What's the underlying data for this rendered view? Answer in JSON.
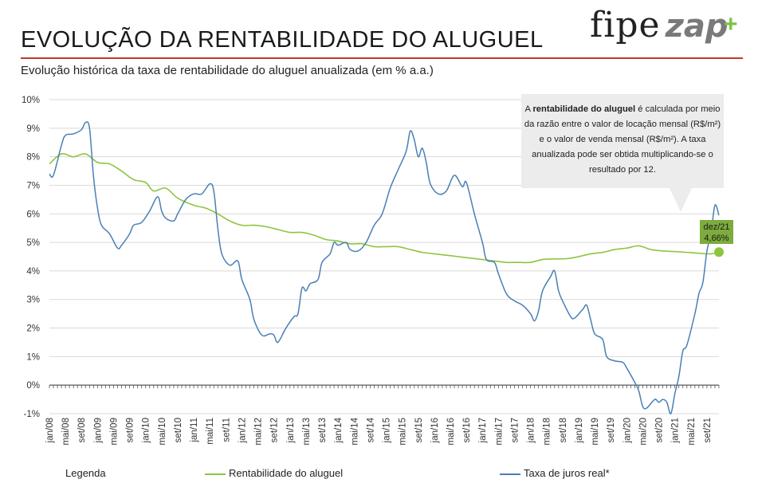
{
  "header": {
    "title": "EVOLUÇÃO DA RENTABILIDADE DO ALUGUEL",
    "subtitle": "Evolução histórica da taxa de rentabilidade do aluguel anualizada (em % a.a.)",
    "logo_main": "fipe",
    "logo_secondary": "zap",
    "logo_plus": "+"
  },
  "note": {
    "prefix": "A ",
    "bold": "rentabilidade do aluguel",
    "rest": " é calculada por meio da razão entre o valor de locação mensal (R$/m²) e o valor de venda mensal (R$/m²).  A taxa anualizada pode ser obtida multiplicando-se  o resultado por 12."
  },
  "callout": {
    "line1": "dez/21",
    "line2": "4,66%"
  },
  "legend": {
    "title": "Legenda",
    "items": [
      {
        "label": "Rentabilidade do aluguel",
        "color": "#8cc63f"
      },
      {
        "label": "Taxa de juros real*",
        "color": "#4a7fb5"
      }
    ]
  },
  "colors": {
    "accent_rule": "#c0392b",
    "rent": "#8cc63f",
    "rate": "#4a7fb5",
    "callout": "#7dab3d",
    "grid": "#d9d9d9"
  },
  "chart_data": {
    "type": "line",
    "x_range": [
      "jan/08",
      "dez/21"
    ],
    "ylim": [
      -1,
      10
    ],
    "y_ticks": [
      "-1%",
      "0%",
      "1%",
      "2%",
      "3%",
      "4%",
      "5%",
      "6%",
      "7%",
      "8%",
      "9%",
      "10%"
    ],
    "x_tick_labels": [
      "jan/08",
      "mai/08",
      "set/08",
      "jan/09",
      "mai/09",
      "set/09",
      "jan/10",
      "mai/10",
      "set/10",
      "jan/11",
      "mai/11",
      "set/11",
      "jan/12",
      "mai/12",
      "set/12",
      "jan/13",
      "mai/13",
      "set/13",
      "jan/14",
      "mai/14",
      "set/14",
      "jan/15",
      "mai/15",
      "set/15",
      "jan/16",
      "mai/16",
      "set/16",
      "jan/17",
      "mai/17",
      "set/17",
      "jan/18",
      "mai/18",
      "set/18",
      "jan/19",
      "mai/19",
      "set/19",
      "jan/20",
      "mai/20",
      "set/20",
      "jan/21",
      "mai/21",
      "set/21"
    ],
    "series": [
      {
        "name": "Rentabilidade do aluguel",
        "points": [
          [
            "jan/08",
            7.75
          ],
          [
            "abr/08",
            8.1
          ],
          [
            "jul/08",
            8.0
          ],
          [
            "out/08",
            8.1
          ],
          [
            "jan/09",
            7.8
          ],
          [
            "abr/09",
            7.75
          ],
          [
            "jul/09",
            7.5
          ],
          [
            "out/09",
            7.2
          ],
          [
            "jan/10",
            7.1
          ],
          [
            "mar/10",
            6.8
          ],
          [
            "jun/10",
            6.9
          ],
          [
            "set/10",
            6.55
          ],
          [
            "jan/11",
            6.3
          ],
          [
            "abr/11",
            6.2
          ],
          [
            "jul/11",
            6.0
          ],
          [
            "out/11",
            5.75
          ],
          [
            "jan/12",
            5.6
          ],
          [
            "abr/12",
            5.6
          ],
          [
            "jul/12",
            5.55
          ],
          [
            "out/12",
            5.45
          ],
          [
            "jan/13",
            5.35
          ],
          [
            "abr/13",
            5.35
          ],
          [
            "jul/13",
            5.25
          ],
          [
            "out/13",
            5.1
          ],
          [
            "jan/14",
            5.05
          ],
          [
            "abr/14",
            4.95
          ],
          [
            "jul/14",
            4.95
          ],
          [
            "out/14",
            4.85
          ],
          [
            "jan/15",
            4.85
          ],
          [
            "abr/15",
            4.85
          ],
          [
            "jul/15",
            4.75
          ],
          [
            "out/15",
            4.65
          ],
          [
            "jan/16",
            4.6
          ],
          [
            "abr/16",
            4.55
          ],
          [
            "jul/16",
            4.5
          ],
          [
            "out/16",
            4.45
          ],
          [
            "jan/17",
            4.4
          ],
          [
            "abr/17",
            4.35
          ],
          [
            "jul/17",
            4.3
          ],
          [
            "out/17",
            4.3
          ],
          [
            "jan/18",
            4.3
          ],
          [
            "abr/18",
            4.4
          ],
          [
            "jul/18",
            4.42
          ],
          [
            "out/18",
            4.43
          ],
          [
            "jan/19",
            4.5
          ],
          [
            "abr/19",
            4.6
          ],
          [
            "jul/19",
            4.65
          ],
          [
            "out/19",
            4.75
          ],
          [
            "jan/20",
            4.8
          ],
          [
            "abr/20",
            4.88
          ],
          [
            "jul/20",
            4.75
          ],
          [
            "out/20",
            4.7
          ],
          [
            "jan/21",
            4.68
          ],
          [
            "abr/21",
            4.65
          ],
          [
            "jul/21",
            4.62
          ],
          [
            "out/21",
            4.6
          ],
          [
            "dez/21",
            4.66
          ]
        ]
      },
      {
        "name": "Taxa de juros real*",
        "points": [
          [
            "jan/08",
            7.4
          ],
          [
            "fev/08",
            7.35
          ],
          [
            "abr/08",
            8.4
          ],
          [
            "mai/08",
            8.75
          ],
          [
            "jul/08",
            8.8
          ],
          [
            "set/08",
            8.95
          ],
          [
            "out/08",
            9.2
          ],
          [
            "nov/08",
            9.0
          ],
          [
            "dez/08",
            7.3
          ],
          [
            "jan/09",
            6.2
          ],
          [
            "fev/09",
            5.6
          ],
          [
            "abr/09",
            5.3
          ],
          [
            "jun/09",
            4.8
          ],
          [
            "jul/09",
            4.9
          ],
          [
            "set/09",
            5.3
          ],
          [
            "out/09",
            5.6
          ],
          [
            "dez/09",
            5.7
          ],
          [
            "fev/10",
            6.1
          ],
          [
            "abr/10",
            6.6
          ],
          [
            "mai/10",
            6.1
          ],
          [
            "jun/10",
            5.85
          ],
          [
            "ago/10",
            5.75
          ],
          [
            "set/10",
            6.0
          ],
          [
            "nov/10",
            6.5
          ],
          [
            "jan/11",
            6.7
          ],
          [
            "mar/11",
            6.7
          ],
          [
            "mai/11",
            7.05
          ],
          [
            "jun/11",
            6.8
          ],
          [
            "jul/11",
            5.5
          ],
          [
            "ago/11",
            4.6
          ],
          [
            "out/11",
            4.2
          ],
          [
            "dez/11",
            4.35
          ],
          [
            "jan/12",
            3.7
          ],
          [
            "mar/12",
            3.0
          ],
          [
            "abr/12",
            2.3
          ],
          [
            "jun/12",
            1.75
          ],
          [
            "ago/12",
            1.8
          ],
          [
            "set/12",
            1.75
          ],
          [
            "out/12",
            1.5
          ],
          [
            "dez/12",
            2.0
          ],
          [
            "fev/13",
            2.4
          ],
          [
            "mar/13",
            2.5
          ],
          [
            "abr/13",
            3.4
          ],
          [
            "mai/13",
            3.3
          ],
          [
            "jun/13",
            3.55
          ],
          [
            "ago/13",
            3.7
          ],
          [
            "set/13",
            4.3
          ],
          [
            "nov/13",
            4.6
          ],
          [
            "dez/13",
            5.0
          ],
          [
            "jan/14",
            4.9
          ],
          [
            "mar/14",
            5.0
          ],
          [
            "abr/14",
            4.75
          ],
          [
            "jun/14",
            4.7
          ],
          [
            "ago/14",
            5.0
          ],
          [
            "out/14",
            5.6
          ],
          [
            "dez/14",
            6.0
          ],
          [
            "fev/15",
            6.9
          ],
          [
            "abr/15",
            7.55
          ],
          [
            "jun/15",
            8.2
          ],
          [
            "jul/15",
            8.9
          ],
          [
            "ago/15",
            8.6
          ],
          [
            "set/15",
            8.0
          ],
          [
            "out/15",
            8.3
          ],
          [
            "nov/15",
            7.8
          ],
          [
            "dez/15",
            7.05
          ],
          [
            "fev/16",
            6.7
          ],
          [
            "abr/16",
            6.8
          ],
          [
            "jun/16",
            7.35
          ],
          [
            "ago/16",
            6.95
          ],
          [
            "set/16",
            7.1
          ],
          [
            "nov/16",
            6.0
          ],
          [
            "jan/17",
            5.0
          ],
          [
            "fev/17",
            4.4
          ],
          [
            "abr/17",
            4.3
          ],
          [
            "mai/17",
            3.9
          ],
          [
            "jul/17",
            3.2
          ],
          [
            "set/17",
            2.95
          ],
          [
            "nov/17",
            2.8
          ],
          [
            "jan/18",
            2.5
          ],
          [
            "fev/18",
            2.25
          ],
          [
            "mar/18",
            2.6
          ],
          [
            "abr/18",
            3.3
          ],
          [
            "jun/18",
            3.8
          ],
          [
            "jul/18",
            4.0
          ],
          [
            "ago/18",
            3.3
          ],
          [
            "set/18",
            2.95
          ],
          [
            "nov/18",
            2.4
          ],
          [
            "dez/18",
            2.35
          ],
          [
            "fev/19",
            2.65
          ],
          [
            "mar/19",
            2.8
          ],
          [
            "abr/19",
            2.3
          ],
          [
            "mai/19",
            1.8
          ],
          [
            "jul/19",
            1.6
          ],
          [
            "ago/19",
            1.0
          ],
          [
            "out/19",
            0.85
          ],
          [
            "dez/19",
            0.8
          ],
          [
            "jan/20",
            0.6
          ],
          [
            "mar/20",
            0.1
          ],
          [
            "abr/20",
            -0.2
          ],
          [
            "mai/20",
            -0.75
          ],
          [
            "jun/20",
            -0.8
          ],
          [
            "ago/20",
            -0.5
          ],
          [
            "set/20",
            -0.6
          ],
          [
            "out/20",
            -0.5
          ],
          [
            "nov/20",
            -0.6
          ],
          [
            "dez/20",
            -1.0
          ],
          [
            "jan/21",
            -0.3
          ],
          [
            "fev/21",
            0.3
          ],
          [
            "mar/21",
            1.2
          ],
          [
            "abr/21",
            1.4
          ],
          [
            "jun/21",
            2.5
          ],
          [
            "jul/21",
            3.2
          ],
          [
            "ago/21",
            3.6
          ],
          [
            "set/21",
            4.7
          ],
          [
            "out/21",
            5.3
          ],
          [
            "nov/21",
            6.3
          ],
          [
            "dez/21",
            5.95
          ]
        ]
      }
    ],
    "highlight": {
      "x": "dez/21",
      "y": 4.66,
      "series": "Rentabilidade do aluguel"
    },
    "grid": true,
    "legend_position": "bottom"
  }
}
